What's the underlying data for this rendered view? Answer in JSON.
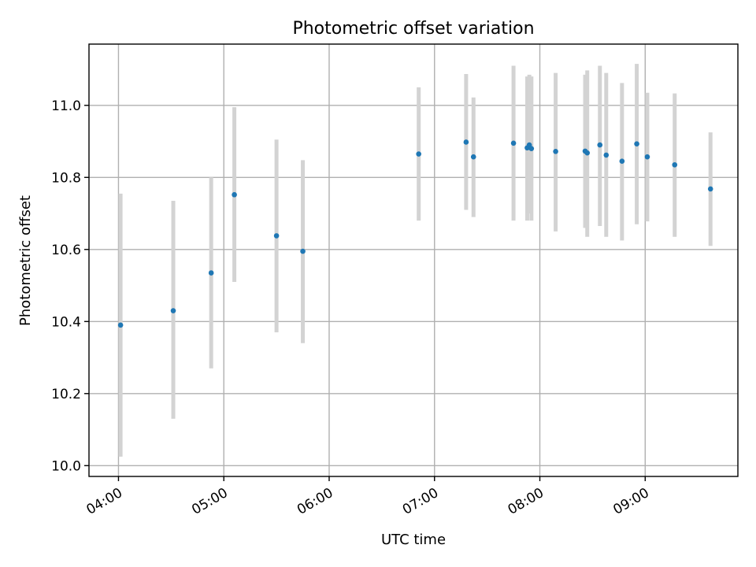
{
  "chart_data": {
    "type": "scatter",
    "title": "Photometric offset variation",
    "xlabel": "UTC time",
    "ylabel": "Photometric offset",
    "xlim": [
      3.72,
      9.88
    ],
    "ylim": [
      9.97,
      11.17
    ],
    "grid": true,
    "x_ticks": [
      {
        "value": 4,
        "label": "04:00"
      },
      {
        "value": 5,
        "label": "05:00"
      },
      {
        "value": 6,
        "label": "06:00"
      },
      {
        "value": 7,
        "label": "07:00"
      },
      {
        "value": 8,
        "label": "08:00"
      },
      {
        "value": 9,
        "label": "09:00"
      }
    ],
    "y_ticks": [
      {
        "value": 10.0,
        "label": "10.0"
      },
      {
        "value": 10.2,
        "label": "10.2"
      },
      {
        "value": 10.4,
        "label": "10.4"
      },
      {
        "value": 10.6,
        "label": "10.6"
      },
      {
        "value": 10.8,
        "label": "10.8"
      },
      {
        "value": 11.0,
        "label": "11.0"
      }
    ],
    "x_unit": "hours UTC",
    "marker_color": "#1f77b4",
    "errorbar_color": "#d3d3d3",
    "points": [
      {
        "x": 4.02,
        "y": 10.39,
        "lo": 10.025,
        "hi": 10.755
      },
      {
        "x": 4.52,
        "y": 10.43,
        "lo": 10.13,
        "hi": 10.735
      },
      {
        "x": 4.88,
        "y": 10.535,
        "lo": 10.27,
        "hi": 10.8
      },
      {
        "x": 5.1,
        "y": 10.752,
        "lo": 10.51,
        "hi": 10.995
      },
      {
        "x": 5.5,
        "y": 10.638,
        "lo": 10.37,
        "hi": 10.905
      },
      {
        "x": 5.75,
        "y": 10.595,
        "lo": 10.34,
        "hi": 10.848
      },
      {
        "x": 6.85,
        "y": 10.865,
        "lo": 10.68,
        "hi": 11.05
      },
      {
        "x": 7.3,
        "y": 10.898,
        "lo": 10.71,
        "hi": 11.087
      },
      {
        "x": 7.37,
        "y": 10.857,
        "lo": 10.69,
        "hi": 11.022
      },
      {
        "x": 7.75,
        "y": 10.895,
        "lo": 10.68,
        "hi": 11.11
      },
      {
        "x": 7.88,
        "y": 10.882,
        "lo": 10.68,
        "hi": 11.08
      },
      {
        "x": 7.9,
        "y": 10.89,
        "lo": 10.7,
        "hi": 11.085
      },
      {
        "x": 7.92,
        "y": 10.88,
        "lo": 10.68,
        "hi": 11.08
      },
      {
        "x": 8.15,
        "y": 10.872,
        "lo": 10.65,
        "hi": 11.09
      },
      {
        "x": 8.43,
        "y": 10.873,
        "lo": 10.66,
        "hi": 11.085
      },
      {
        "x": 8.45,
        "y": 10.868,
        "lo": 10.635,
        "hi": 11.097
      },
      {
        "x": 8.57,
        "y": 10.89,
        "lo": 10.665,
        "hi": 11.11
      },
      {
        "x": 8.63,
        "y": 10.862,
        "lo": 10.635,
        "hi": 11.09
      },
      {
        "x": 8.78,
        "y": 10.845,
        "lo": 10.625,
        "hi": 11.062
      },
      {
        "x": 8.92,
        "y": 10.893,
        "lo": 10.67,
        "hi": 11.115
      },
      {
        "x": 9.02,
        "y": 10.857,
        "lo": 10.678,
        "hi": 11.035
      },
      {
        "x": 9.28,
        "y": 10.835,
        "lo": 10.635,
        "hi": 11.033
      },
      {
        "x": 9.62,
        "y": 10.768,
        "lo": 10.61,
        "hi": 10.925
      }
    ]
  }
}
